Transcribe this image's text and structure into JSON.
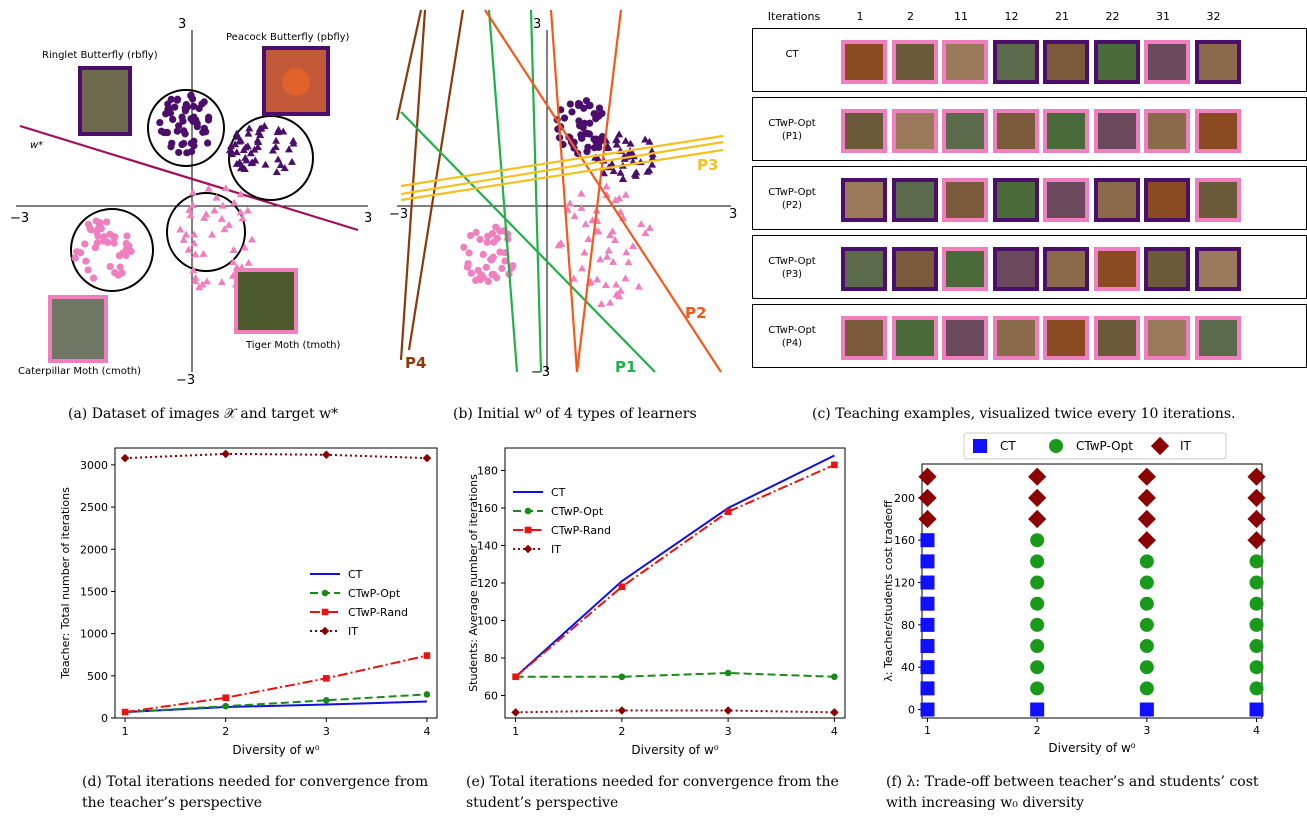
{
  "panel_a": {
    "axis": {
      "xmin_label": "−3",
      "xmax_label": "3",
      "ymax_label": "3",
      "ymin_label": "−3"
    },
    "target_label": "w*",
    "classes": [
      {
        "name": "Ringlet Butterfly (rbfly)",
        "color": "#4b0e6b",
        "marker": "circle"
      },
      {
        "name": "Peacock Butterfly (pbfly)",
        "color": "#4b0e6b",
        "marker": "triangle"
      },
      {
        "name": "Caterpillar Moth (cmoth)",
        "color": "#f07fbf",
        "marker": "circle"
      },
      {
        "name": "Tiger Moth (tmoth)",
        "color": "#f07fbf",
        "marker": "triangle"
      }
    ]
  },
  "panel_b": {
    "axis": {
      "xmin_label": "−3",
      "xmax_label": "3",
      "ymax_label": "3",
      "ymin_label": "−3"
    },
    "learner_labels": [
      {
        "name": "P1",
        "color": "#22b04a"
      },
      {
        "name": "P2",
        "color": "#f25a1c"
      },
      {
        "name": "P3",
        "color": "#f5c022"
      },
      {
        "name": "P4",
        "color": "#8a3a0a"
      }
    ]
  },
  "panel_c": {
    "header_label": "Iterations",
    "iterations": [
      "1",
      "2",
      "11",
      "12",
      "21",
      "22",
      "31",
      "32"
    ],
    "rows": [
      {
        "label": "CT",
        "frames": [
          "pink",
          "pink",
          "pink",
          "purple",
          "purple",
          "purple",
          "pink",
          "purple"
        ]
      },
      {
        "label": "CTwP-Opt\n(P1)",
        "frames": [
          "pink",
          "pink",
          "pink",
          "pink",
          "pink",
          "pink",
          "pink",
          "pink"
        ]
      },
      {
        "label": "CTwP-Opt\n(P2)",
        "frames": [
          "purple",
          "purple",
          "pink",
          "purple",
          "pink",
          "purple",
          "purple",
          "pink"
        ]
      },
      {
        "label": "CTwP-Opt\n(P3)",
        "frames": [
          "purple",
          "purple",
          "pink",
          "purple",
          "purple",
          "pink",
          "purple",
          "purple"
        ]
      },
      {
        "label": "CTwP-Opt\n(P4)",
        "frames": [
          "pink",
          "pink",
          "pink",
          "pink",
          "pink",
          "pink",
          "pink",
          "pink"
        ]
      }
    ],
    "frame_colors": {
      "pink": "#f07fbf",
      "purple": "#4b0e6b"
    }
  },
  "captions": {
    "a": "(a) Dataset of images 𝒳 and target w*",
    "b": "(b) Initial w⁰ of 4 types of learners",
    "c": "(c) Teaching examples, visualized twice every 10 iterations.",
    "d": "(d) Total iterations needed for convergence from the teacher’s perspective",
    "e": "(e) Total iterations needed for convergence from the student’s perspective",
    "f": "(f) λ: Trade-off between teacher’s and students’ cost with increasing w₀ diversity"
  },
  "chart_data": [
    {
      "id": "d",
      "type": "line",
      "xlabel": "Diversity of w⁰",
      "ylabel": "Teacher: Total number of iterations",
      "x": [
        1,
        2,
        3,
        4
      ],
      "xticks": [
        "1",
        "2",
        "3",
        "4"
      ],
      "ylim": [
        0,
        3200
      ],
      "yticks": [
        "0",
        "500",
        "1000",
        "1500",
        "2000",
        "2500",
        "3000"
      ],
      "legend_position": "center-right",
      "series": [
        {
          "name": "CT",
          "color": "#1010e0",
          "dash": "",
          "marker": "",
          "values": [
            70,
            130,
            160,
            195
          ]
        },
        {
          "name": "CTwP-Opt",
          "color": "#1a8a1a",
          "dash": "8,4",
          "marker": "circle",
          "values": [
            70,
            140,
            210,
            280
          ]
        },
        {
          "name": "CTwP-Rand",
          "color": "#ee1111",
          "dash": "10,3,2,3",
          "marker": "square",
          "values": [
            70,
            240,
            470,
            740
          ]
        },
        {
          "name": "IT",
          "color": "#8b0000",
          "dash": "2,3",
          "marker": "diamond",
          "values": [
            3080,
            3130,
            3120,
            3080
          ]
        }
      ]
    },
    {
      "id": "e",
      "type": "line",
      "xlabel": "Diversity of w⁰",
      "ylabel": "Students: Average number of iterations",
      "x": [
        1,
        2,
        3,
        4
      ],
      "xticks": [
        "1",
        "2",
        "3",
        "4"
      ],
      "ylim": [
        48,
        192
      ],
      "yticks": [
        "60",
        "80",
        "100",
        "120",
        "140",
        "160",
        "180"
      ],
      "legend_position": "top-left",
      "series": [
        {
          "name": "CT",
          "color": "#1010e0",
          "dash": "",
          "marker": "",
          "values": [
            70,
            121,
            160,
            188
          ]
        },
        {
          "name": "CTwP-Opt",
          "color": "#1a8a1a",
          "dash": "8,4",
          "marker": "circle",
          "values": [
            70,
            70,
            72,
            70
          ]
        },
        {
          "name": "CTwP-Rand",
          "color": "#ee1111",
          "dash": "10,3,2,3",
          "marker": "square",
          "values": [
            70,
            118,
            158,
            183
          ]
        },
        {
          "name": "IT",
          "color": "#8b0000",
          "dash": "2,3",
          "marker": "diamond",
          "values": [
            51,
            52,
            52,
            51
          ]
        }
      ]
    },
    {
      "id": "f",
      "type": "scatter",
      "xlabel": "Diversity of w⁰",
      "ylabel": "λ: Teacher/students cost tradeoff",
      "x": [
        1,
        2,
        3,
        4
      ],
      "xticks": [
        "1",
        "2",
        "3",
        "4"
      ],
      "ylim": [
        -8,
        232
      ],
      "yticks": [
        "0",
        "40",
        "80",
        "120",
        "160",
        "200"
      ],
      "legend_position": "top",
      "series": [
        {
          "name": "CT",
          "color": "#1010ff",
          "marker": "square",
          "points": [
            [
              1,
              0
            ],
            [
              1,
              20
            ],
            [
              1,
              40
            ],
            [
              1,
              60
            ],
            [
              1,
              80
            ],
            [
              1,
              100
            ],
            [
              1,
              120
            ],
            [
              1,
              140
            ],
            [
              1,
              160
            ],
            [
              2,
              0
            ],
            [
              3,
              0
            ],
            [
              4,
              0
            ]
          ]
        },
        {
          "name": "CTwP-Opt",
          "color": "#1a9a1a",
          "marker": "circle",
          "points": [
            [
              2,
              20
            ],
            [
              2,
              40
            ],
            [
              2,
              60
            ],
            [
              2,
              80
            ],
            [
              2,
              100
            ],
            [
              2,
              120
            ],
            [
              2,
              140
            ],
            [
              2,
              160
            ],
            [
              3,
              20
            ],
            [
              3,
              40
            ],
            [
              3,
              60
            ],
            [
              3,
              80
            ],
            [
              3,
              100
            ],
            [
              3,
              120
            ],
            [
              3,
              140
            ],
            [
              4,
              20
            ],
            [
              4,
              40
            ],
            [
              4,
              60
            ],
            [
              4,
              80
            ],
            [
              4,
              100
            ],
            [
              4,
              120
            ],
            [
              4,
              140
            ]
          ]
        },
        {
          "name": "IT",
          "color": "#8b0000",
          "marker": "diamond",
          "points": [
            [
              1,
              180
            ],
            [
              1,
              200
            ],
            [
              1,
              220
            ],
            [
              2,
              180
            ],
            [
              2,
              200
            ],
            [
              2,
              220
            ],
            [
              3,
              160
            ],
            [
              3,
              180
            ],
            [
              3,
              200
            ],
            [
              3,
              220
            ],
            [
              4,
              160
            ],
            [
              4,
              180
            ],
            [
              4,
              200
            ],
            [
              4,
              220
            ]
          ]
        }
      ]
    }
  ]
}
